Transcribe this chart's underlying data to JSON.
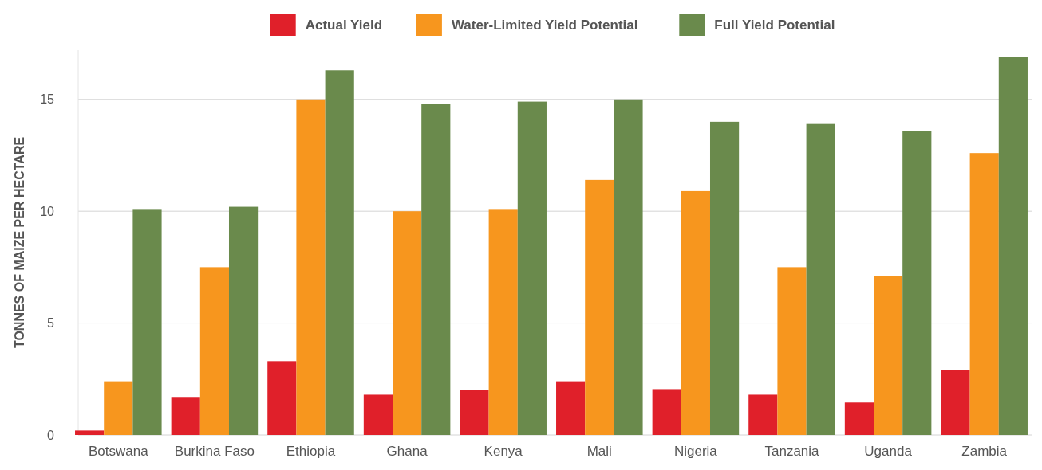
{
  "chart_data": {
    "type": "bar",
    "ylabel": "TONNES OF MAIZE PER HECTARE",
    "categories": [
      "Botswana",
      "Burkina Faso",
      "Ethiopia",
      "Ghana",
      "Kenya",
      "Mali",
      "Nigeria",
      "Tanzania",
      "Uganda",
      "Zambia"
    ],
    "series": [
      {
        "name": "Actual Yield",
        "color": "#e0202a",
        "values": [
          0.2,
          1.7,
          3.3,
          1.8,
          2.0,
          2.4,
          2.05,
          1.8,
          1.45,
          2.9
        ]
      },
      {
        "name": "Water-Limited Yield Potential",
        "color": "#f7961e",
        "values": [
          2.4,
          7.5,
          15.0,
          10.0,
          10.1,
          11.4,
          10.9,
          7.5,
          7.1,
          12.6
        ]
      },
      {
        "name": "Full Yield Potential",
        "color": "#6a8a4c",
        "values": [
          10.1,
          10.2,
          16.3,
          14.8,
          14.9,
          15.0,
          14.0,
          13.9,
          13.6,
          16.9
        ]
      }
    ],
    "ylim": [
      0,
      17.2
    ],
    "yticks": [
      0,
      5,
      10,
      15
    ],
    "grid": "y",
    "legend": "top"
  }
}
